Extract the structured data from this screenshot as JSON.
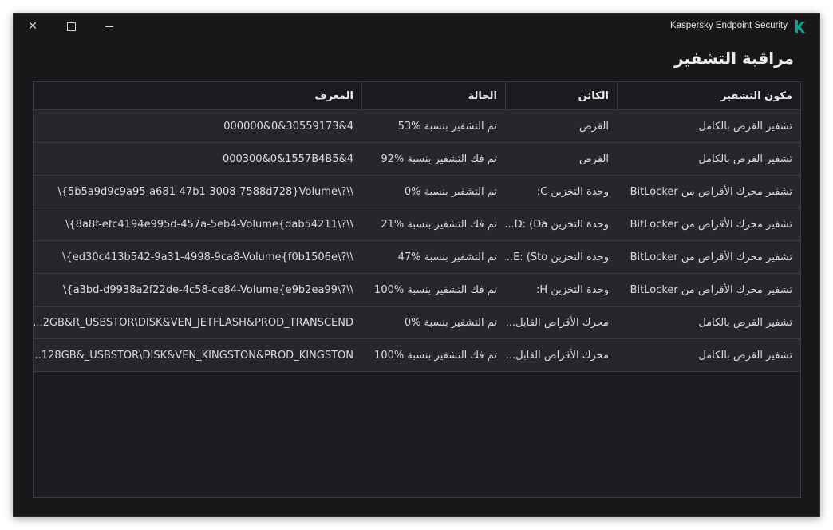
{
  "window": {
    "app_title": "Kaspersky Endpoint Security",
    "logo": "K",
    "brand_color": "#00a88e",
    "controls": [
      "close-icon",
      "maximize-icon",
      "minimize-icon"
    ]
  },
  "page_title": "مراقبة التشفير",
  "table": {
    "columns": [
      "مكون التشفير",
      "الكائن",
      "الحالة",
      "المعرف"
    ],
    "rows": [
      {
        "component": "تشفير القرص بالكامل",
        "object": "القرص",
        "status": "تم التشفير بنسبة %53",
        "id": "000000&0&30559173&4"
      },
      {
        "component": "تشفير القرص بالكامل",
        "object": "القرص",
        "status": "تم فك التشفير بنسبة %92",
        "id": "000300&0&1557B4B5&4"
      },
      {
        "component": "تشفير محرك الأقراص من BitLocker",
        "object": "وحدة التخزين C:",
        "status": "تم التشفير بنسبة %0",
        "id": "\\{5b5a9d9c9a95-a681-47b1-3008-7588d728}Volume\\?\\\\"
      },
      {
        "component": "تشفير محرك الأقراص من BitLocker",
        "object": "وحدة التخزين D: (Da...",
        "status": "تم فك التشفير بنسبة %21",
        "id": "\\{8a8f-efc4194e995d-457a-5eb4-Volume{dab54211\\?\\\\"
      },
      {
        "component": "تشفير محرك الأقراص من BitLocker",
        "object": "وحدة التخزين E: (Sto...",
        "status": "تم التشفير بنسبة %47",
        "id": "\\{ed30c413b542-9a31-4998-9ca8-Volume{f0b1506e\\?\\\\"
      },
      {
        "component": "تشفير محرك الأقراص من BitLocker",
        "object": "وحدة التخزين H:",
        "status": "تم فك التشفير بنسبة %100",
        "id": "\\{a3bd-d9938a2f22de-4c58-ce84-Volume{e9b2ea99\\?\\\\"
      },
      {
        "component": "تشفير القرص بالكامل",
        "object": "محرك الأقراص القابل...",
        "status": "تم التشفير بنسبة %0",
        "id": "...2GB&R_USBSTOR\\DISK&VEN_JETFLASH&PROD_TRANSCEND"
      },
      {
        "component": "تشفير القرص بالكامل",
        "object": "محرك الأقراص القابل...",
        "status": "تم فك التشفير بنسبة %100",
        "id": "...128GB&_USBSTOR\\DISK&VEN_KINGSTON&PROD_KINGSTON"
      }
    ]
  }
}
